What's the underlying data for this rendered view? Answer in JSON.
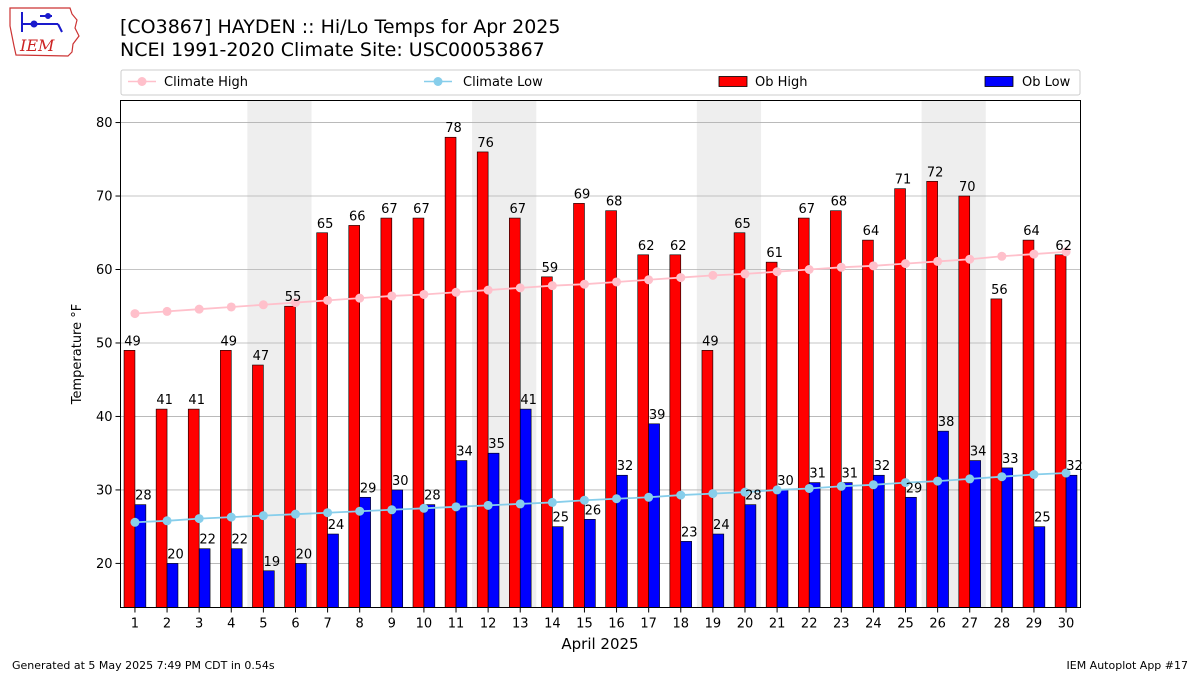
{
  "header": {
    "title_line1": "[CO3867] HAYDEN :: Hi/Lo Temps for Apr 2025",
    "title_line2": "NCEI 1991-2020 Climate Site: USC00053867"
  },
  "logo": {
    "text": "IEM",
    "icon": "iowa-state-outline-logo"
  },
  "footer": {
    "left": "Generated at 5 May 2025 7:49 PM CDT in 0.54s",
    "right": "IEM Autoplot App #17"
  },
  "colors": {
    "ob_high": "#ff0000",
    "ob_low": "#0000ff",
    "climate_high": "#ffc0cb",
    "climate_low": "#87ceeb",
    "weekend_shade": "#eeeeee",
    "grid": "#b0b0b0"
  },
  "chart_data": {
    "type": "bar",
    "xlabel": "April 2025",
    "ylabel": "Temperature °F",
    "ylim": [
      14,
      83
    ],
    "yticks": [
      20,
      30,
      40,
      50,
      60,
      70,
      80
    ],
    "xlim": [
      0.55,
      30.45
    ],
    "grid": "horizontal",
    "legend": "top",
    "shaded_day_ranges": [
      [
        5,
        6
      ],
      [
        12,
        13
      ],
      [
        19,
        20
      ],
      [
        26,
        27
      ]
    ],
    "categories": [
      "1",
      "2",
      "3",
      "4",
      "5",
      "6",
      "7",
      "8",
      "9",
      "10",
      "11",
      "12",
      "13",
      "14",
      "15",
      "16",
      "17",
      "18",
      "19",
      "20",
      "21",
      "22",
      "23",
      "24",
      "25",
      "26",
      "27",
      "28",
      "29",
      "30"
    ],
    "series": [
      {
        "name": "Climate High",
        "kind": "line",
        "values": [
          54.0,
          54.3,
          54.6,
          54.9,
          55.2,
          55.5,
          55.8,
          56.1,
          56.4,
          56.6,
          56.9,
          57.2,
          57.5,
          57.8,
          58.0,
          58.3,
          58.6,
          58.9,
          59.2,
          59.4,
          59.7,
          60.0,
          60.3,
          60.5,
          60.8,
          61.1,
          61.4,
          61.8,
          62.1,
          62.4
        ]
      },
      {
        "name": "Climate Low",
        "kind": "line",
        "values": [
          25.6,
          25.8,
          26.1,
          26.3,
          26.5,
          26.7,
          26.9,
          27.1,
          27.3,
          27.5,
          27.7,
          27.9,
          28.1,
          28.3,
          28.6,
          28.8,
          29.0,
          29.3,
          29.5,
          29.7,
          30.0,
          30.2,
          30.5,
          30.7,
          31.0,
          31.2,
          31.5,
          31.8,
          32.1,
          32.3
        ]
      },
      {
        "name": "Ob High",
        "kind": "bar",
        "values": [
          49,
          41,
          41,
          49,
          47,
          55,
          65,
          66,
          67,
          67,
          78,
          76,
          67,
          59,
          69,
          68,
          62,
          62,
          49,
          65,
          61,
          67,
          68,
          64,
          71,
          72,
          70,
          56,
          64,
          62
        ]
      },
      {
        "name": "Ob Low",
        "kind": "bar",
        "values": [
          28,
          20,
          22,
          22,
          19,
          20,
          24,
          29,
          30,
          28,
          34,
          35,
          41,
          25,
          26,
          32,
          39,
          23,
          24,
          28,
          30,
          31,
          31,
          32,
          29,
          38,
          34,
          33,
          25,
          32
        ]
      }
    ]
  }
}
